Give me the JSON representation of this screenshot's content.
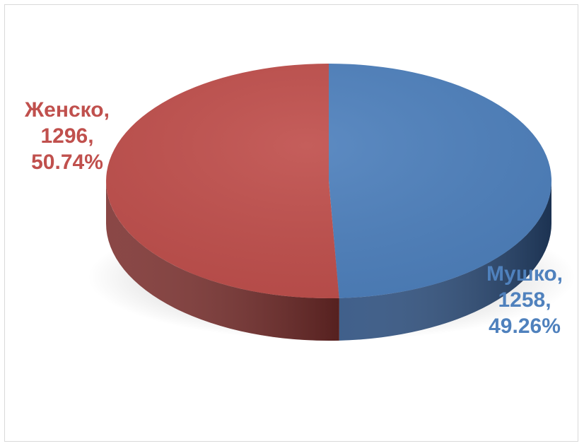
{
  "chart_data": {
    "type": "pie",
    "style": "3d",
    "slices": [
      {
        "name": "Мушко",
        "value": 1258,
        "percent": "49.26%",
        "label_name": "Мушко,",
        "label_value": "1258,",
        "label_percent": "49.26%",
        "color": "#4F81BD",
        "side_color": "#2B4E7E"
      },
      {
        "name": "Женско",
        "value": 1296,
        "percent": "50.74%",
        "label_name": "Женско,",
        "label_value": "1296,",
        "label_percent": "50.74%",
        "color": "#C0504D",
        "side_color": "#7A2E2C"
      }
    ],
    "start_angle_deg": 0,
    "direction": "clockwise",
    "legend": "none"
  }
}
